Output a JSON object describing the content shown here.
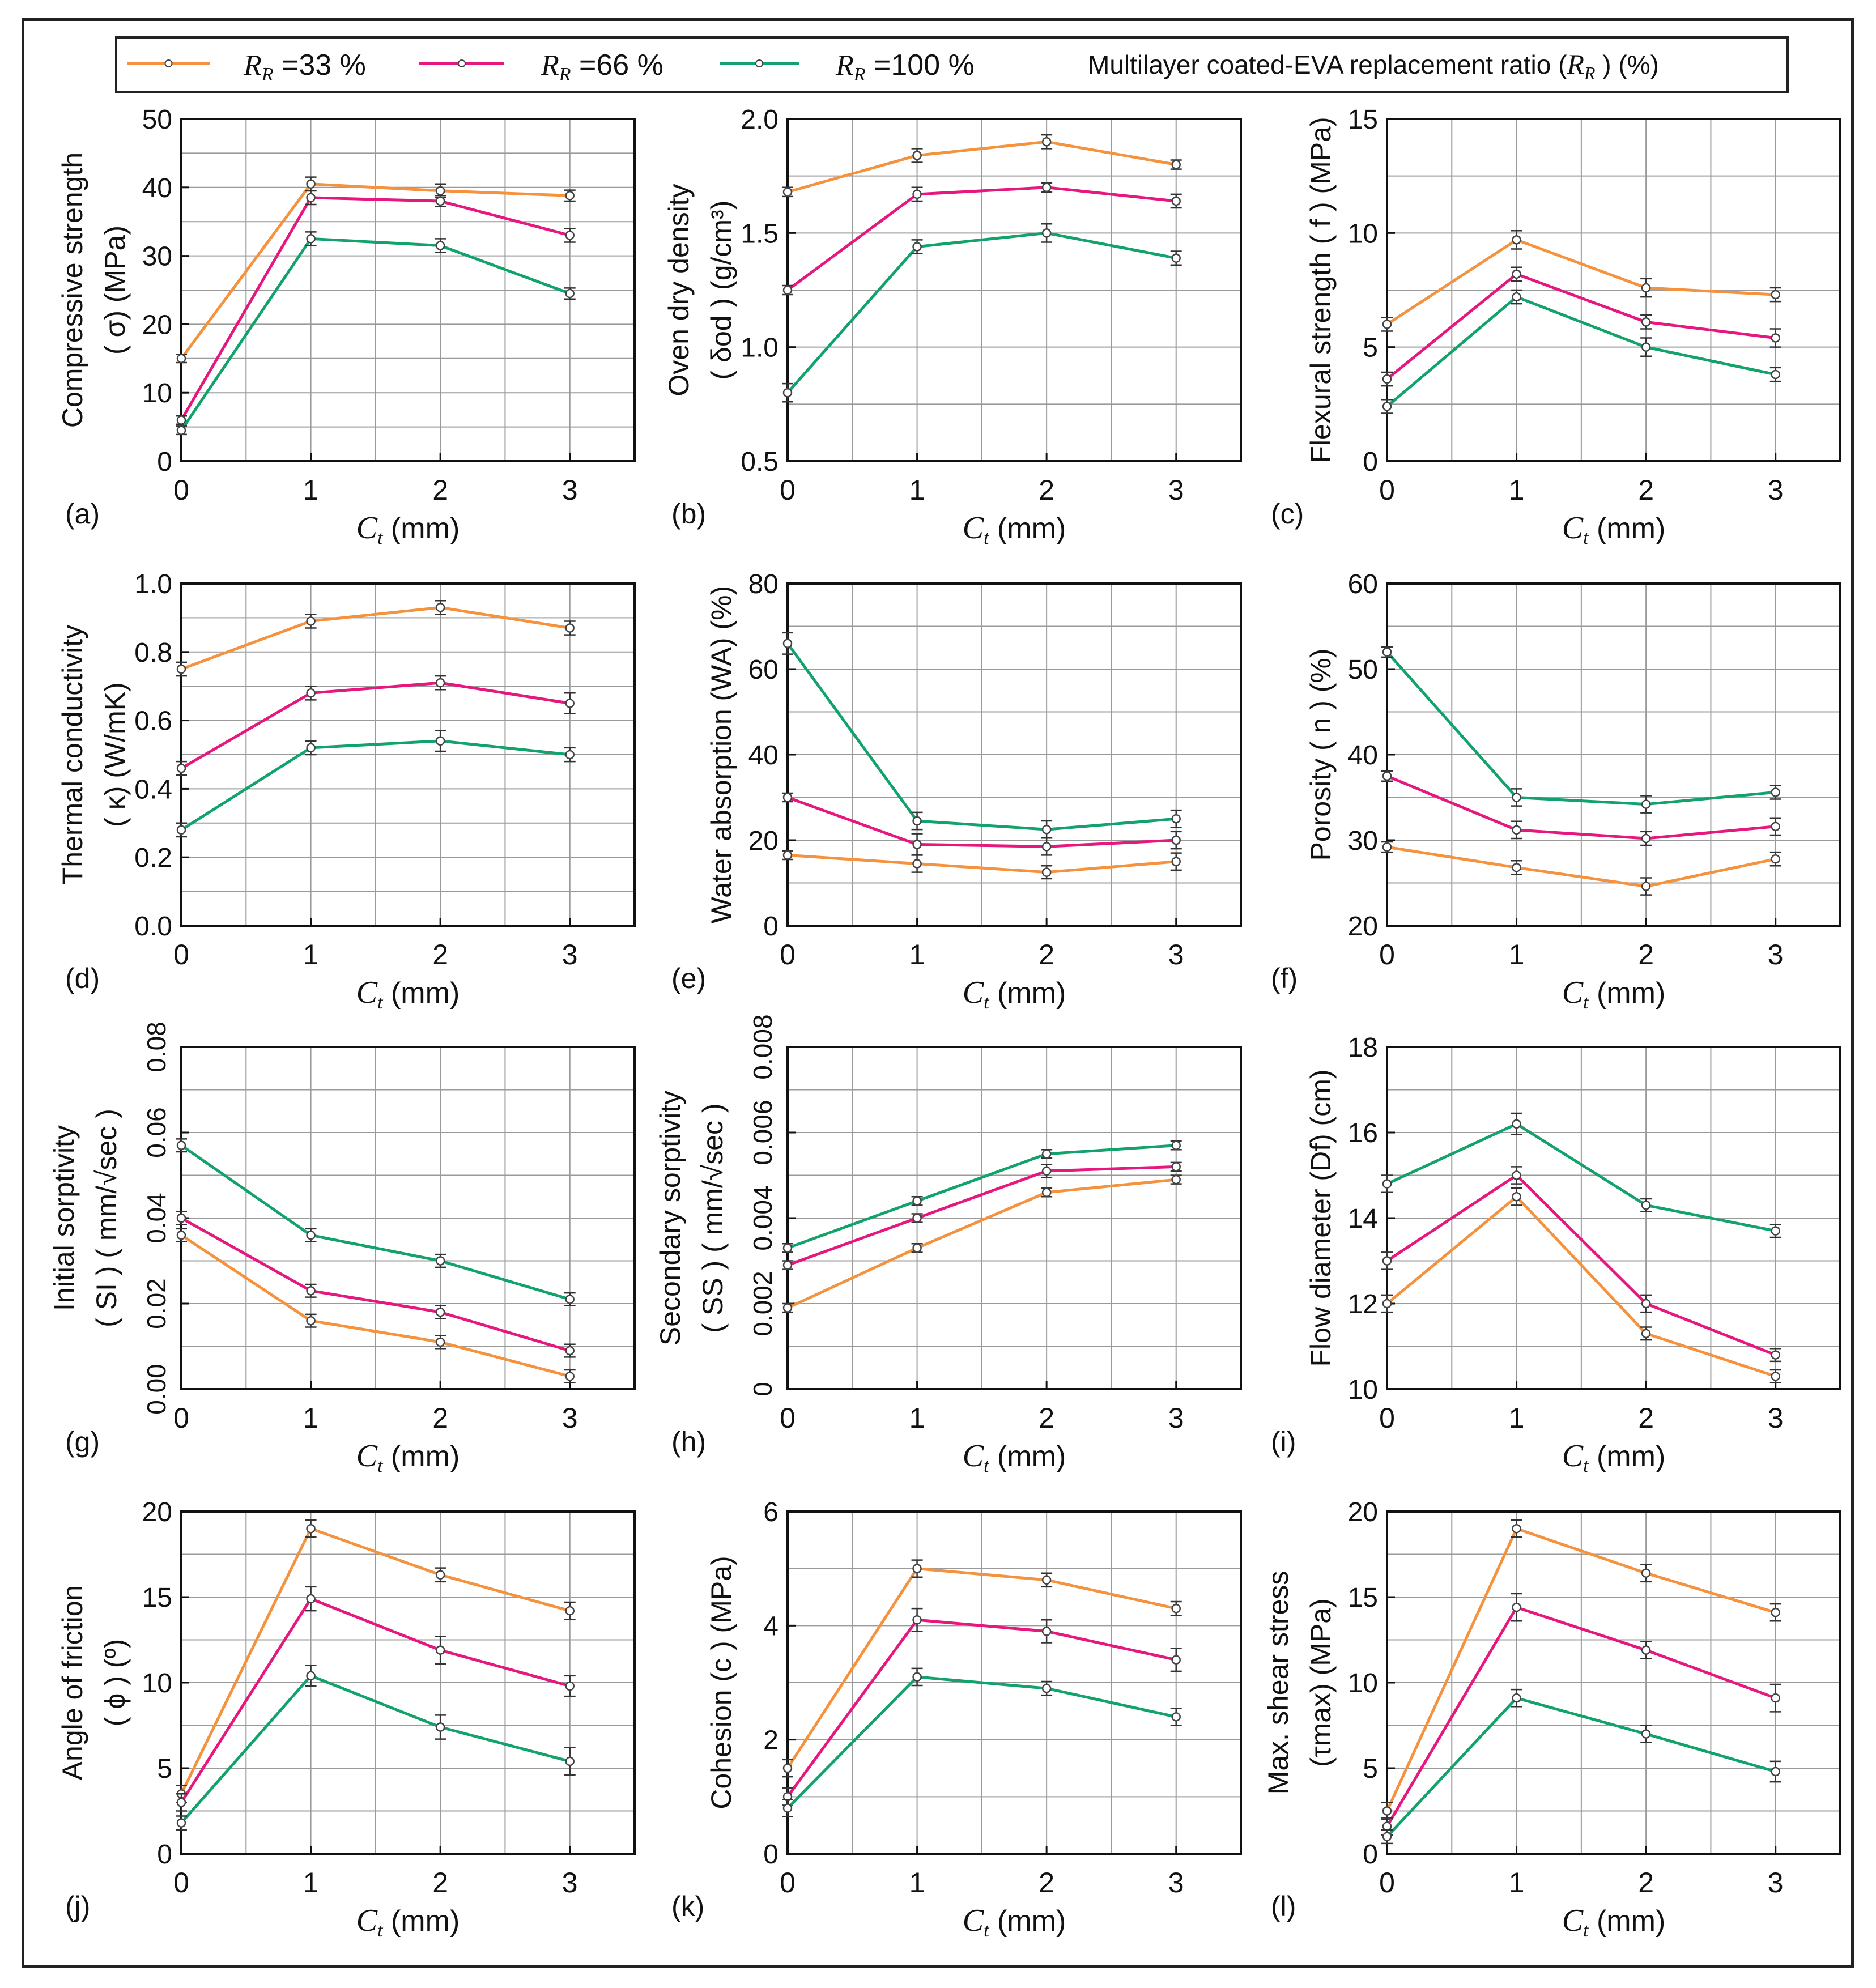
{
  "colors": {
    "s33": "#F5923E",
    "s66": "#E6177E",
    "s100": "#12A26B",
    "grid": "#9a9a9a",
    "axis": "#111111"
  },
  "legend": {
    "items": [
      {
        "symbol": "R",
        "sub": "R",
        "label": "=33 %",
        "color": "#F5923E"
      },
      {
        "symbol": "R",
        "sub": "R",
        "label": "=66 %",
        "color": "#E6177E"
      },
      {
        "symbol": "R",
        "sub": "R",
        "label": "=100 %",
        "color": "#12A26B"
      }
    ],
    "title_pre": "Multilayer coated-EVA replacement ratio (",
    "title_sym": "R",
    "title_sub": "R",
    "title_post": " ) (%)"
  },
  "chart_data": [
    {
      "id": "a",
      "type": "line",
      "panel_label": "(a)",
      "ylabel_line1": "Compressive strength",
      "ylabel_line2": "( σ) (MPa)",
      "xlabel_sym": "C",
      "xlabel_sub": "t",
      "xlabel_unit": " (mm)",
      "x": [
        0,
        1,
        2,
        3
      ],
      "xlim": [
        0,
        3.5
      ],
      "xticks": [
        "0",
        "1",
        "2",
        "3"
      ],
      "ylim": [
        0,
        50
      ],
      "yticks": [
        "0",
        "10",
        "20",
        "30",
        "40",
        "50"
      ],
      "grid": true,
      "series": [
        {
          "name": "RR=33 %",
          "values": [
            15,
            40.5,
            39.5,
            38.8
          ],
          "errors": [
            0.6,
            1,
            1,
            0.8
          ]
        },
        {
          "name": "RR=66 %",
          "values": [
            6,
            38.5,
            38,
            33
          ],
          "errors": [
            0.6,
            1,
            0.8,
            1
          ]
        },
        {
          "name": "RR=100 %",
          "values": [
            4.5,
            32.5,
            31.5,
            24.5
          ],
          "errors": [
            0.6,
            1,
            1,
            0.8
          ]
        }
      ]
    },
    {
      "id": "b",
      "type": "line",
      "panel_label": "(b)",
      "ylabel_line1": "Oven dry density",
      "ylabel_line2": "( δod ) (g/cm³)",
      "xlabel_sym": "C",
      "xlabel_sub": "t",
      "xlabel_unit": " (mm)",
      "x": [
        0,
        1,
        2,
        3
      ],
      "xlim": [
        0,
        3.5
      ],
      "xticks": [
        "0",
        "1",
        "2",
        "3"
      ],
      "ylim": [
        0.5,
        2.0
      ],
      "yticks": [
        "0.5",
        "1.0",
        "1.5",
        "2.0"
      ],
      "grid": true,
      "series": [
        {
          "name": "RR=33 %",
          "values": [
            1.68,
            1.84,
            1.9,
            1.8
          ],
          "errors": [
            0.02,
            0.03,
            0.03,
            0.02
          ]
        },
        {
          "name": "RR=66 %",
          "values": [
            1.25,
            1.67,
            1.7,
            1.64
          ],
          "errors": [
            0.02,
            0.03,
            0.02,
            0.03
          ]
        },
        {
          "name": "RR=100 %",
          "values": [
            0.8,
            1.44,
            1.5,
            1.39
          ],
          "errors": [
            0.04,
            0.03,
            0.04,
            0.03
          ]
        }
      ]
    },
    {
      "id": "c",
      "type": "line",
      "panel_label": "(c)",
      "ylabel_line1": "Flexural strength ( f ) (MPa)",
      "ylabel_line2": "",
      "xlabel_sym": "C",
      "xlabel_sub": "t",
      "xlabel_unit": " (mm)",
      "x": [
        0,
        1,
        2,
        3
      ],
      "xlim": [
        0,
        3.5
      ],
      "xticks": [
        "0",
        "1",
        "2",
        "3"
      ],
      "ylim": [
        0,
        15
      ],
      "yticks": [
        "0",
        "5",
        "10",
        "15"
      ],
      "grid": true,
      "series": [
        {
          "name": "RR=33 %",
          "values": [
            6,
            9.7,
            7.6,
            7.3
          ],
          "errors": [
            0.3,
            0.4,
            0.4,
            0.3
          ]
        },
        {
          "name": "RR=66 %",
          "values": [
            3.6,
            8.2,
            6.1,
            5.4
          ],
          "errors": [
            0.3,
            0.3,
            0.3,
            0.4
          ]
        },
        {
          "name": "RR=100 %",
          "values": [
            2.4,
            7.2,
            5,
            3.8
          ],
          "errors": [
            0.3,
            0.3,
            0.4,
            0.3
          ]
        }
      ]
    },
    {
      "id": "d",
      "type": "line",
      "panel_label": "(d)",
      "ylabel_line1": "Thermal conductivity",
      "ylabel_line2": "( κ) (W/mK)",
      "xlabel_sym": "C",
      "xlabel_sub": "t",
      "xlabel_unit": " (mm)",
      "x": [
        0,
        1,
        2,
        3
      ],
      "xlim": [
        0,
        3.5
      ],
      "xticks": [
        "0",
        "1",
        "2",
        "3"
      ],
      "ylim": [
        0,
        1.0
      ],
      "yticks": [
        "0.0",
        "0.2",
        "0.4",
        "0.6",
        "0.8",
        "1.0"
      ],
      "grid": true,
      "series": [
        {
          "name": "RR=33 %",
          "values": [
            0.75,
            0.89,
            0.93,
            0.87
          ],
          "errors": [
            0.02,
            0.02,
            0.02,
            0.02
          ]
        },
        {
          "name": "RR=66 %",
          "values": [
            0.46,
            0.68,
            0.71,
            0.65
          ],
          "errors": [
            0.02,
            0.02,
            0.02,
            0.03
          ]
        },
        {
          "name": "RR=100 %",
          "values": [
            0.28,
            0.52,
            0.54,
            0.5
          ],
          "errors": [
            0.02,
            0.02,
            0.03,
            0.02
          ]
        }
      ]
    },
    {
      "id": "e",
      "type": "line",
      "panel_label": "(e)",
      "ylabel_line1": "Water absorption  (WA) (%)",
      "ylabel_line2": "",
      "xlabel_sym": "C",
      "xlabel_sub": "t",
      "xlabel_unit": " (mm)",
      "x": [
        0,
        1,
        2,
        3
      ],
      "xlim": [
        0,
        3.5
      ],
      "xticks": [
        "0",
        "1",
        "2",
        "3"
      ],
      "ylim": [
        0,
        80
      ],
      "yticks": [
        "0",
        "20",
        "40",
        "60",
        "80"
      ],
      "grid": true,
      "series": [
        {
          "name": "RR=33 %",
          "values": [
            16.5,
            14.5,
            12.5,
            15
          ],
          "errors": [
            1,
            2,
            1.5,
            2
          ]
        },
        {
          "name": "RR=66 %",
          "values": [
            30,
            19,
            18.5,
            20
          ],
          "errors": [
            1,
            2.5,
            2,
            2
          ]
        },
        {
          "name": "RR=100 %",
          "values": [
            66,
            24.5,
            22.5,
            25
          ],
          "errors": [
            2.5,
            2,
            2,
            2
          ]
        }
      ]
    },
    {
      "id": "f",
      "type": "line",
      "panel_label": "(f)",
      "ylabel_line1": "Porosity ( n ) (%)",
      "ylabel_line2": "",
      "xlabel_sym": "C",
      "xlabel_sub": "t",
      "xlabel_unit": " (mm)",
      "x": [
        0,
        1,
        2,
        3
      ],
      "xlim": [
        0,
        3.5
      ],
      "xticks": [
        "0",
        "1",
        "2",
        "3"
      ],
      "ylim": [
        20,
        60
      ],
      "yticks": [
        "20",
        "30",
        "40",
        "50",
        "60"
      ],
      "grid": true,
      "series": [
        {
          "name": "RR=33 %",
          "values": [
            29.2,
            26.8,
            24.6,
            27.8
          ],
          "errors": [
            0.6,
            0.8,
            1,
            0.8
          ]
        },
        {
          "name": "RR=66 %",
          "values": [
            37.5,
            31.2,
            30.2,
            31.6
          ],
          "errors": [
            0.6,
            1,
            0.8,
            1
          ]
        },
        {
          "name": "RR=100 %",
          "values": [
            52,
            35,
            34.2,
            35.6
          ],
          "errors": [
            0.6,
            1,
            1,
            0.8
          ]
        }
      ]
    },
    {
      "id": "g",
      "type": "line",
      "panel_label": "(g)",
      "ylabel_line1": "Initial sorptivity",
      "ylabel_line2": "( SI ) ( mm/√sec )",
      "xlabel_sym": "C",
      "xlabel_sub": "t",
      "xlabel_unit": " (mm)",
      "x": [
        0,
        1,
        2,
        3
      ],
      "xlim": [
        0,
        3.5
      ],
      "xticks": [
        "0",
        "1",
        "2",
        "3"
      ],
      "ylim": [
        0,
        0.08
      ],
      "yticks": [
        "0.00",
        "0.02",
        "0.04",
        "0.06",
        "0.08"
      ],
      "ytick_rotate": true,
      "grid": true,
      "series": [
        {
          "name": "RR=33 %",
          "values": [
            0.036,
            0.016,
            0.011,
            0.003
          ],
          "errors": [
            0.0015,
            0.0015,
            0.0015,
            0.0015
          ]
        },
        {
          "name": "RR=66 %",
          "values": [
            0.04,
            0.023,
            0.018,
            0.009
          ],
          "errors": [
            0.0015,
            0.0015,
            0.0015,
            0.0015
          ]
        },
        {
          "name": "RR=100 %",
          "values": [
            0.057,
            0.036,
            0.03,
            0.021
          ],
          "errors": [
            0.0015,
            0.0015,
            0.0015,
            0.0015
          ]
        }
      ]
    },
    {
      "id": "h",
      "type": "line",
      "panel_label": "(h)",
      "ylabel_line1": "Secondary sorptivity",
      "ylabel_line2": "( SS ) ( mm/√sec )",
      "xlabel_sym": "C",
      "xlabel_sub": "t",
      "xlabel_unit": " (mm)",
      "x": [
        0,
        1,
        2,
        3
      ],
      "xlim": [
        0,
        3.5
      ],
      "xticks": [
        "0",
        "1",
        "2",
        "3"
      ],
      "ylim": [
        0,
        0.008
      ],
      "yticks": [
        "0",
        "0.002",
        "0.004",
        "0.006",
        "0.008"
      ],
      "ytick_rotate": true,
      "grid": true,
      "series": [
        {
          "name": "RR=33 %",
          "values": [
            0.0019,
            0.0033,
            0.0046,
            0.0049
          ],
          "errors": [
            0.0001,
            0.0001,
            0.0001,
            0.0001
          ]
        },
        {
          "name": "RR=66 %",
          "values": [
            0.0029,
            0.004,
            0.0051,
            0.0052
          ],
          "errors": [
            0.0001,
            0.0001,
            0.00015,
            0.0001
          ]
        },
        {
          "name": "RR=100 %",
          "values": [
            0.0033,
            0.0044,
            0.0055,
            0.0057
          ],
          "errors": [
            0.0001,
            0.0001,
            0.0001,
            0.0001
          ]
        }
      ]
    },
    {
      "id": "i",
      "type": "line",
      "panel_label": "(i)",
      "ylabel_line1": "Flow diameter (Df) (cm)",
      "ylabel_line2": "",
      "xlabel_sym": "C",
      "xlabel_sub": "t",
      "xlabel_unit": " (mm)",
      "x": [
        0,
        1,
        2,
        3
      ],
      "xlim": [
        0,
        3.5
      ],
      "xticks": [
        "0",
        "1",
        "2",
        "3"
      ],
      "ylim": [
        10,
        18
      ],
      "yticks": [
        "10",
        "12",
        "14",
        "16",
        "18"
      ],
      "grid": true,
      "series": [
        {
          "name": "RR=33 %",
          "values": [
            12,
            14.5,
            11.3,
            10.3
          ],
          "errors": [
            0.2,
            0.2,
            0.15,
            0.15
          ]
        },
        {
          "name": "RR=66 %",
          "values": [
            13,
            15,
            12,
            10.8
          ],
          "errors": [
            0.2,
            0.2,
            0.2,
            0.15
          ]
        },
        {
          "name": "RR=100 %",
          "values": [
            14.8,
            16.2,
            14.3,
            13.7
          ],
          "errors": [
            0.2,
            0.25,
            0.15,
            0.15
          ]
        }
      ]
    },
    {
      "id": "j",
      "type": "line",
      "panel_label": "(j)",
      "ylabel_line1": "Angle of friction",
      "ylabel_line2": "( ϕ ) (º)",
      "xlabel_sym": "C",
      "xlabel_sub": "t",
      "xlabel_unit": " (mm)",
      "x": [
        0,
        1,
        2,
        3
      ],
      "xlim": [
        0,
        3.5
      ],
      "xticks": [
        "0",
        "1",
        "2",
        "3"
      ],
      "ylim": [
        0,
        20
      ],
      "yticks": [
        "0",
        "5",
        "10",
        "15",
        "20"
      ],
      "grid": true,
      "series": [
        {
          "name": "RR=33 %",
          "values": [
            3.5,
            19,
            16.3,
            14.2
          ],
          "errors": [
            0.5,
            0.5,
            0.4,
            0.5
          ]
        },
        {
          "name": "RR=66 %",
          "values": [
            3,
            14.9,
            11.9,
            9.8
          ],
          "errors": [
            0.5,
            0.7,
            0.8,
            0.6
          ]
        },
        {
          "name": "RR=100 %",
          "values": [
            1.8,
            10.4,
            7.4,
            5.4
          ],
          "errors": [
            0.4,
            0.6,
            0.7,
            0.8
          ]
        }
      ]
    },
    {
      "id": "k",
      "type": "line",
      "panel_label": "(k)",
      "ylabel_line1": "Cohesion (c ) (MPa)",
      "ylabel_line2": "",
      "xlabel_sym": "C",
      "xlabel_sub": "t",
      "xlabel_unit": " (mm)",
      "x": [
        0,
        1,
        2,
        3
      ],
      "xlim": [
        0,
        3.5
      ],
      "xticks": [
        "0",
        "1",
        "2",
        "3"
      ],
      "ylim": [
        0,
        6
      ],
      "yticks": [
        "0",
        "2",
        "4",
        "6"
      ],
      "grid": true,
      "series": [
        {
          "name": "RR=33 %",
          "values": [
            1.5,
            5,
            4.8,
            4.3
          ],
          "errors": [
            0.15,
            0.15,
            0.12,
            0.12
          ]
        },
        {
          "name": "RR=66 %",
          "values": [
            1,
            4.1,
            3.9,
            3.4
          ],
          "errors": [
            0.15,
            0.2,
            0.2,
            0.2
          ]
        },
        {
          "name": "RR=100 %",
          "values": [
            0.8,
            3.1,
            2.9,
            2.4
          ],
          "errors": [
            0.15,
            0.15,
            0.12,
            0.15
          ]
        }
      ]
    },
    {
      "id": "l",
      "type": "line",
      "panel_label": "(l)",
      "ylabel_line1": "Max. shear stress",
      "ylabel_line2": "(τmax) (MPa)",
      "xlabel_sym": "C",
      "xlabel_sub": "t",
      "xlabel_unit": " (mm)",
      "x": [
        0,
        1,
        2,
        3
      ],
      "xlim": [
        0,
        3.5
      ],
      "xticks": [
        "0",
        "1",
        "2",
        "3"
      ],
      "ylim": [
        0,
        20
      ],
      "yticks": [
        "0",
        "5",
        "10",
        "15",
        "20"
      ],
      "grid": true,
      "series": [
        {
          "name": "RR=33 %",
          "values": [
            2.5,
            19,
            16.4,
            14.1
          ],
          "errors": [
            0.5,
            0.5,
            0.5,
            0.5
          ]
        },
        {
          "name": "RR=66 %",
          "values": [
            1.6,
            14.4,
            11.9,
            9.1
          ],
          "errors": [
            0.5,
            0.8,
            0.5,
            0.8
          ]
        },
        {
          "name": "RR=100 %",
          "values": [
            1,
            9.1,
            7,
            4.8
          ],
          "errors": [
            0.4,
            0.5,
            0.5,
            0.6
          ]
        }
      ]
    }
  ]
}
